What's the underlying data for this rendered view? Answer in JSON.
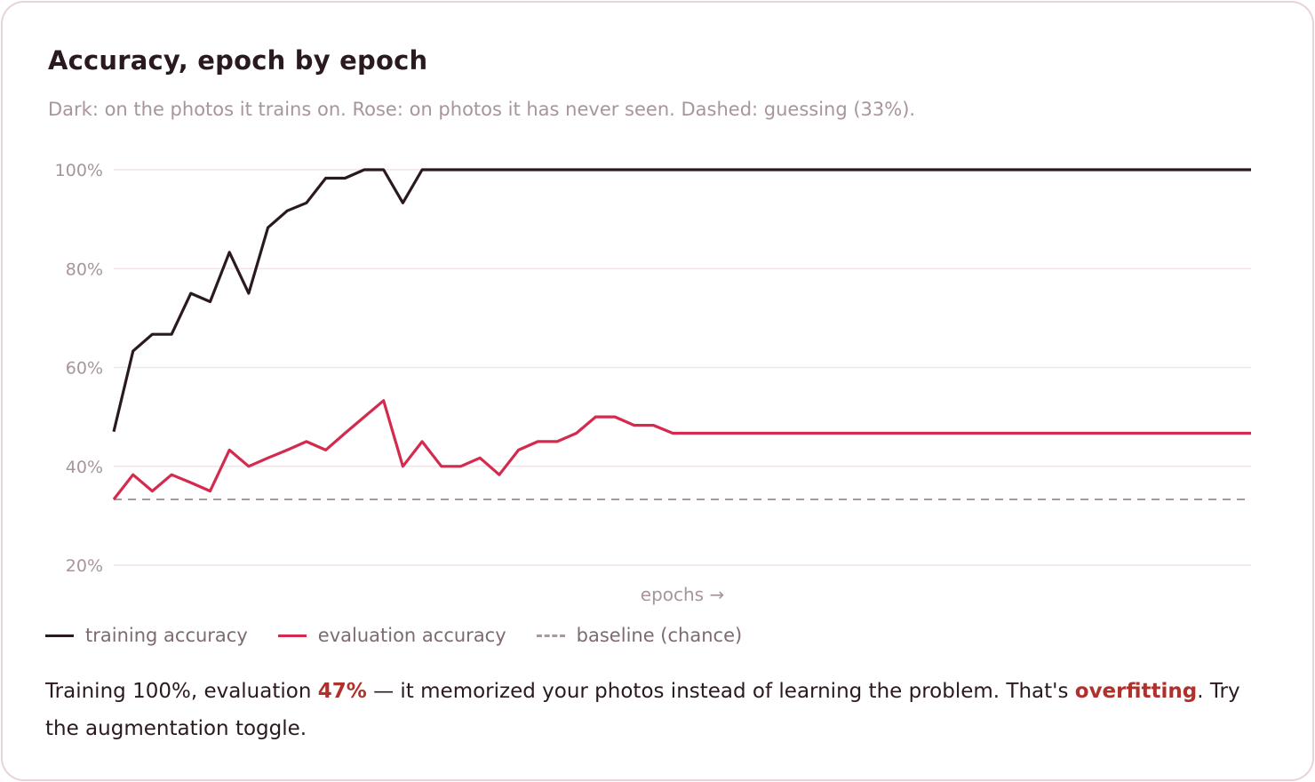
{
  "card": {
    "title": "Accuracy, epoch by epoch",
    "subtitle": "Dark: on the photos it trains on. Rose: on photos it has never seen. Dashed: guessing (33%)."
  },
  "legend": [
    {
      "label": "training accuracy",
      "color": "#2a1a20",
      "style": "solid"
    },
    {
      "label": "evaluation accuracy",
      "color": "#d42a4e",
      "style": "solid"
    },
    {
      "label": "baseline (chance)",
      "color": "#a8999e",
      "style": "dashed"
    }
  ],
  "summary": {
    "prefix": "Training 100%, evaluation ",
    "eval_value": "47%",
    "middle": " — it memorized your photos instead of learning the problem. That's ",
    "term": "overfitting",
    "suffix": ". Try the augmentation toggle."
  },
  "chart_data": {
    "type": "line",
    "title": "Accuracy, epoch by epoch",
    "xlabel": "epochs →",
    "ylabel": "",
    "ylim": [
      20,
      100
    ],
    "yticks": [
      20,
      40,
      60,
      80,
      100
    ],
    "ytick_labels": [
      "20%",
      "40%",
      "60%",
      "80%",
      "100%"
    ],
    "grid": true,
    "x": [
      1,
      2,
      3,
      4,
      5,
      6,
      7,
      8,
      9,
      10,
      11,
      12,
      13,
      14,
      15,
      16,
      17,
      18,
      19,
      20,
      21,
      22,
      23,
      24,
      25,
      26,
      27,
      28,
      29,
      30,
      31,
      32,
      33,
      34,
      35,
      36,
      37,
      38,
      39,
      40,
      41,
      42,
      43,
      44,
      45,
      46,
      47,
      48,
      49,
      50,
      51,
      52,
      53,
      54,
      55,
      56,
      57,
      58,
      59,
      60
    ],
    "series": [
      {
        "name": "training accuracy",
        "color": "#2a1a20",
        "dash": false,
        "values": [
          47,
          63.3,
          66.7,
          66.7,
          75,
          73.3,
          83.3,
          75,
          88.3,
          91.7,
          93.3,
          98.3,
          98.3,
          100,
          100,
          93.3,
          100,
          100,
          100,
          100,
          100,
          100,
          100,
          100,
          100,
          100,
          100,
          100,
          100,
          100,
          100,
          100,
          100,
          100,
          100,
          100,
          100,
          100,
          100,
          100,
          100,
          100,
          100,
          100,
          100,
          100,
          100,
          100,
          100,
          100,
          100,
          100,
          100,
          100,
          100,
          100,
          100,
          100,
          100,
          100
        ]
      },
      {
        "name": "evaluation accuracy",
        "color": "#d42a4e",
        "dash": false,
        "values": [
          33.3,
          38.3,
          35,
          38.3,
          36.7,
          35,
          43.3,
          40,
          41.7,
          43.3,
          45,
          43.3,
          46.7,
          50,
          53.3,
          40,
          45,
          40,
          40,
          41.7,
          38.3,
          43.3,
          45,
          45,
          46.7,
          50,
          50,
          48.3,
          48.3,
          46.7,
          46.7,
          46.7,
          46.7,
          46.7,
          46.7,
          46.7,
          46.7,
          46.7,
          46.7,
          46.7,
          46.7,
          46.7,
          46.7,
          46.7,
          46.7,
          46.7,
          46.7,
          46.7,
          46.7,
          46.7,
          46.7,
          46.7,
          46.7,
          46.7,
          46.7,
          46.7,
          46.7,
          46.7,
          46.7,
          46.7
        ]
      },
      {
        "name": "baseline (chance)",
        "color": "#a8999e",
        "dash": true,
        "values": [
          33.3,
          33.3,
          33.3,
          33.3,
          33.3,
          33.3,
          33.3,
          33.3,
          33.3,
          33.3,
          33.3,
          33.3,
          33.3,
          33.3,
          33.3,
          33.3,
          33.3,
          33.3,
          33.3,
          33.3,
          33.3,
          33.3,
          33.3,
          33.3,
          33.3,
          33.3,
          33.3,
          33.3,
          33.3,
          33.3,
          33.3,
          33.3,
          33.3,
          33.3,
          33.3,
          33.3,
          33.3,
          33.3,
          33.3,
          33.3,
          33.3,
          33.3,
          33.3,
          33.3,
          33.3,
          33.3,
          33.3,
          33.3,
          33.3,
          33.3,
          33.3,
          33.3,
          33.3,
          33.3,
          33.3,
          33.3,
          33.3,
          33.3,
          33.3,
          33.3
        ]
      }
    ]
  }
}
